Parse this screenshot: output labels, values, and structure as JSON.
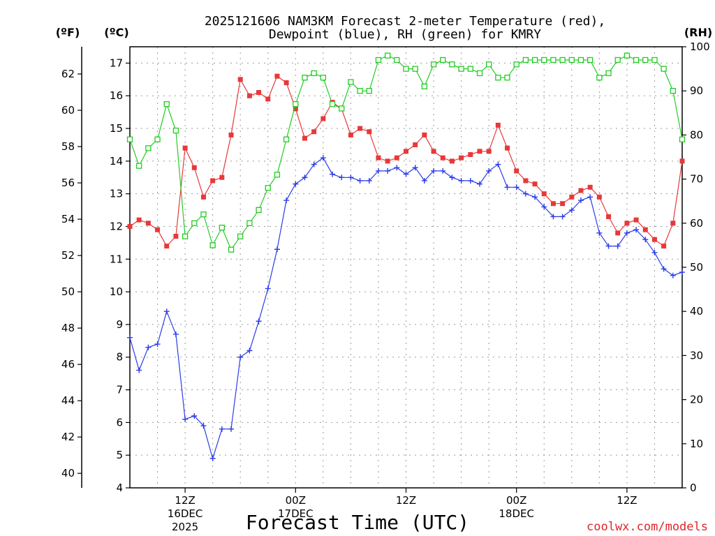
{
  "chart_data": {
    "type": "line",
    "title_line1": "2025121606 NAM3KM Forecast 2-meter Temperature (red),",
    "title_line2": "Dewpoint (blue), RH (green) for KMRY",
    "xlabel": "Forecast Time (UTC)",
    "watermark": "coolwx.com/models",
    "left_outer_axis": {
      "label": "(ºF)",
      "ticks": [
        "40",
        "42",
        "44",
        "46",
        "48",
        "50",
        "52",
        "54",
        "56",
        "58",
        "60",
        "62"
      ],
      "tick_values": [
        40,
        42,
        44,
        46,
        48,
        50,
        52,
        54,
        56,
        58,
        60,
        62
      ],
      "range": [
        39.2,
        63.5
      ]
    },
    "left_axis": {
      "label": "(ºC)",
      "ticks": [
        "4",
        "5",
        "6",
        "7",
        "8",
        "9",
        "10",
        "11",
        "12",
        "13",
        "14",
        "15",
        "16",
        "17"
      ],
      "tick_values": [
        4,
        5,
        6,
        7,
        8,
        9,
        10,
        11,
        12,
        13,
        14,
        15,
        16,
        17
      ],
      "range": [
        4,
        17.5
      ]
    },
    "right_axis": {
      "label": "(RH)",
      "ticks": [
        "0",
        "10",
        "20",
        "30",
        "40",
        "50",
        "60",
        "70",
        "80",
        "90",
        "100"
      ],
      "tick_values": [
        0,
        10,
        20,
        30,
        40,
        50,
        60,
        70,
        80,
        90,
        100
      ],
      "range": [
        0,
        100
      ]
    },
    "x_axis": {
      "range_hours": [
        0,
        60
      ],
      "ticks": [
        {
          "hour": 6,
          "label": "12Z",
          "date": "16DEC",
          "year": "2025"
        },
        {
          "hour": 18,
          "label": "00Z",
          "date": "17DEC",
          "year": ""
        },
        {
          "hour": 30,
          "label": "12Z",
          "date": "",
          "year": ""
        },
        {
          "hour": 42,
          "label": "00Z",
          "date": "18DEC",
          "year": ""
        },
        {
          "hour": 54,
          "label": "12Z",
          "date": "",
          "year": ""
        }
      ]
    },
    "grid": true,
    "series": [
      {
        "name": "Temperature (red)",
        "color": "#e8383a",
        "axis": "celsius",
        "marker": "filled-square",
        "x": [
          0,
          1,
          2,
          3,
          4,
          5,
          6,
          7,
          8,
          9,
          10,
          11,
          12,
          13,
          14,
          15,
          16,
          17,
          18,
          19,
          20,
          21,
          22,
          23,
          24,
          25,
          26,
          27,
          28,
          29,
          30,
          31,
          32,
          33,
          34,
          35,
          36,
          37,
          38,
          39,
          40,
          41,
          42,
          43,
          44,
          45,
          46,
          47,
          48,
          49,
          50,
          51,
          52,
          53,
          54,
          55,
          56,
          57,
          58,
          59,
          60
        ],
        "values": [
          12.0,
          12.2,
          12.1,
          11.9,
          11.4,
          11.7,
          14.4,
          13.8,
          12.9,
          13.4,
          13.5,
          14.8,
          16.5,
          16.0,
          16.1,
          15.9,
          16.6,
          16.4,
          15.6,
          14.7,
          14.9,
          15.3,
          15.8,
          15.6,
          14.8,
          15.0,
          14.9,
          14.1,
          14.0,
          14.1,
          14.3,
          14.5,
          14.8,
          14.3,
          14.1,
          14.0,
          14.1,
          14.2,
          14.3,
          14.3,
          15.1,
          14.4,
          13.7,
          13.4,
          13.3,
          13.0,
          12.7,
          12.7,
          12.9,
          13.1,
          13.2,
          12.9,
          12.3,
          11.8,
          12.1,
          12.2,
          11.9,
          11.6,
          11.4,
          12.1,
          14.0
        ]
      },
      {
        "name": "Dewpoint (blue)",
        "color": "#2a3ce6",
        "axis": "celsius",
        "marker": "plus",
        "x": [
          0,
          1,
          2,
          3,
          4,
          5,
          6,
          7,
          8,
          9,
          10,
          11,
          12,
          13,
          14,
          15,
          16,
          17,
          18,
          19,
          20,
          21,
          22,
          23,
          24,
          25,
          26,
          27,
          28,
          29,
          30,
          31,
          32,
          33,
          34,
          35,
          36,
          37,
          38,
          39,
          40,
          41,
          42,
          43,
          44,
          45,
          46,
          47,
          48,
          49,
          50,
          51,
          52,
          53,
          54,
          55,
          56,
          57,
          58,
          59,
          60
        ],
        "values": [
          8.6,
          7.6,
          8.3,
          8.4,
          9.4,
          8.7,
          6.1,
          6.2,
          5.9,
          4.9,
          5.8,
          5.8,
          8.0,
          8.2,
          9.1,
          10.1,
          11.3,
          12.8,
          13.3,
          13.5,
          13.9,
          14.1,
          13.6,
          13.5,
          13.5,
          13.4,
          13.4,
          13.7,
          13.7,
          13.8,
          13.6,
          13.8,
          13.4,
          13.7,
          13.7,
          13.5,
          13.4,
          13.4,
          13.3,
          13.7,
          13.9,
          13.2,
          13.2,
          13.0,
          12.9,
          12.6,
          12.3,
          12.3,
          12.5,
          12.8,
          12.9,
          11.8,
          11.4,
          11.4,
          11.8,
          11.9,
          11.6,
          11.2,
          10.7,
          10.5,
          10.6
        ]
      },
      {
        "name": "RH (green)",
        "color": "#22cc22",
        "axis": "rh",
        "marker": "open-square",
        "x": [
          0,
          1,
          2,
          3,
          4,
          5,
          6,
          7,
          8,
          9,
          10,
          11,
          12,
          13,
          14,
          15,
          16,
          17,
          18,
          19,
          20,
          21,
          22,
          23,
          24,
          25,
          26,
          27,
          28,
          29,
          30,
          31,
          32,
          33,
          34,
          35,
          36,
          37,
          38,
          39,
          40,
          41,
          42,
          43,
          44,
          45,
          46,
          47,
          48,
          49,
          50,
          51,
          52,
          53,
          54,
          55,
          56,
          57,
          58,
          59,
          60
        ],
        "values": [
          79,
          73,
          77,
          79,
          87,
          81,
          57,
          60,
          62,
          55,
          59,
          54,
          57,
          60,
          63,
          68,
          71,
          79,
          87,
          93,
          94,
          93,
          87,
          86,
          92,
          90,
          90,
          97,
          98,
          97,
          95,
          95,
          91,
          96,
          97,
          96,
          95,
          95,
          94,
          96,
          93,
          93,
          96,
          97,
          97,
          97,
          97,
          97,
          97,
          97,
          97,
          93,
          94,
          97,
          98,
          97,
          97,
          97,
          95,
          90,
          79
        ]
      }
    ]
  }
}
